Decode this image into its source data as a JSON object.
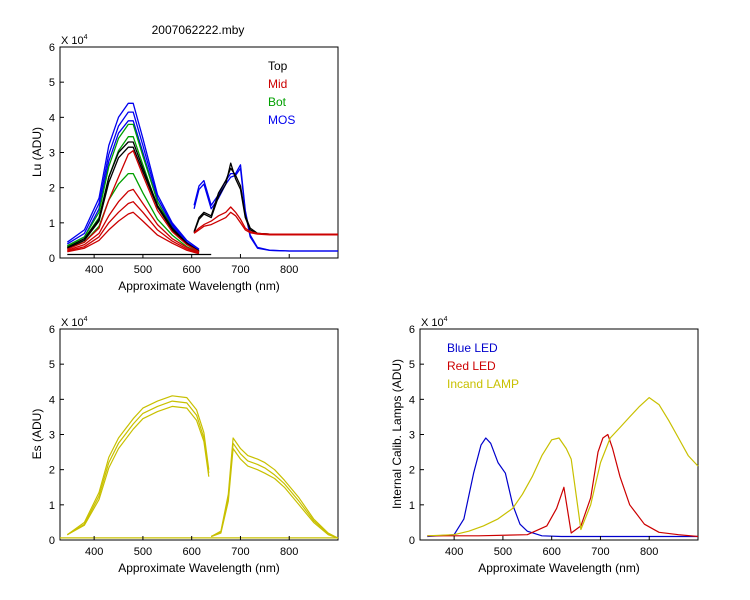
{
  "colors": {
    "top": "#000000",
    "mid": "#cc0000",
    "bot": "#00a000",
    "mos": "#0000ee",
    "es": "#c8c000",
    "blue_led": "#0000cc",
    "red_led": "#cc0000",
    "incand": "#c8c000"
  },
  "chart_data": [
    {
      "id": "lu",
      "type": "line",
      "title": "2007062222.mby",
      "xlabel": "Approximate Wavelength (nm)",
      "ylabel": "Lu (ADU)",
      "y_multiplier": "X 10",
      "y_exponent": "4",
      "xlim": [
        330,
        900
      ],
      "ylim": [
        0,
        6
      ],
      "xticks": [
        400,
        500,
        600,
        700,
        800
      ],
      "yticks": [
        0,
        1,
        2,
        3,
        4,
        5,
        6
      ],
      "legend_position": "top-right",
      "legend": [
        {
          "name": "Top",
          "color_key": "top"
        },
        {
          "name": "Mid",
          "color_key": "mid"
        },
        {
          "name": "Bot",
          "color_key": "bot"
        },
        {
          "name": "MOS",
          "color_key": "mos"
        }
      ],
      "series": [
        {
          "group": "mos",
          "x": [
            345,
            380,
            410,
            430,
            450,
            470,
            480,
            500,
            530,
            560,
            590,
            615
          ],
          "y": [
            0.45,
            0.8,
            1.7,
            3.2,
            4.0,
            4.4,
            4.4,
            3.4,
            1.8,
            1.0,
            0.5,
            0.25
          ]
        },
        {
          "group": "mos",
          "x": [
            345,
            380,
            410,
            430,
            450,
            470,
            480,
            500,
            530,
            560,
            590,
            615
          ],
          "y": [
            0.4,
            0.7,
            1.55,
            2.95,
            3.75,
            4.15,
            4.15,
            3.2,
            1.7,
            0.95,
            0.45,
            0.22
          ]
        },
        {
          "group": "mos",
          "x": [
            345,
            380,
            410,
            430,
            450,
            470,
            480,
            500,
            530,
            560,
            590,
            615
          ],
          "y": [
            0.35,
            0.6,
            1.4,
            2.75,
            3.55,
            3.9,
            3.9,
            3.0,
            1.6,
            0.9,
            0.4,
            0.2
          ]
        },
        {
          "group": "mos",
          "x": [
            605,
            615,
            625,
            640,
            655,
            670,
            680,
            690,
            700,
            710,
            720,
            735,
            760,
            800,
            850,
            900
          ],
          "y": [
            1.4,
            1.95,
            2.1,
            1.4,
            1.7,
            2.1,
            2.3,
            2.35,
            2.55,
            1.3,
            0.6,
            0.28,
            0.22,
            0.2,
            0.2,
            0.2
          ]
        },
        {
          "group": "mos",
          "x": [
            605,
            615,
            625,
            640,
            655,
            670,
            680,
            690,
            700,
            710,
            720,
            735,
            760,
            800,
            850,
            900
          ],
          "y": [
            1.5,
            2.05,
            2.2,
            1.5,
            1.8,
            2.2,
            2.4,
            2.4,
            2.65,
            1.35,
            0.65,
            0.3,
            0.22,
            0.2,
            0.2,
            0.2
          ]
        },
        {
          "group": "bot",
          "x": [
            345,
            380,
            410,
            430,
            450,
            470,
            480,
            500,
            530,
            560,
            590,
            615
          ],
          "y": [
            0.35,
            0.6,
            1.3,
            2.6,
            3.4,
            3.8,
            3.8,
            2.9,
            1.6,
            0.85,
            0.4,
            0.2
          ]
        },
        {
          "group": "bot",
          "x": [
            345,
            380,
            410,
            430,
            450,
            470,
            480,
            500,
            530,
            560,
            590,
            615
          ],
          "y": [
            0.32,
            0.55,
            1.15,
            2.3,
            3.05,
            3.45,
            3.45,
            2.65,
            1.45,
            0.8,
            0.38,
            0.18
          ]
        },
        {
          "group": "bot",
          "x": [
            345,
            380,
            410,
            430,
            450,
            470,
            480,
            500,
            530,
            560,
            590,
            615
          ],
          "y": [
            0.28,
            0.45,
            0.9,
            1.65,
            2.1,
            2.4,
            2.4,
            1.85,
            1.1,
            0.65,
            0.32,
            0.16
          ]
        },
        {
          "group": "top",
          "x": [
            345,
            380,
            410,
            430,
            450,
            470,
            480,
            500,
            530,
            560,
            590,
            615
          ],
          "y": [
            0.3,
            0.55,
            1.1,
            2.3,
            3.0,
            3.3,
            3.3,
            2.55,
            1.5,
            0.85,
            0.42,
            0.2
          ]
        },
        {
          "group": "top",
          "x": [
            345,
            380,
            410,
            430,
            450,
            470,
            480,
            500,
            530,
            560,
            590,
            615
          ],
          "y": [
            0.28,
            0.5,
            1.05,
            2.15,
            2.85,
            3.15,
            3.15,
            2.45,
            1.45,
            0.8,
            0.4,
            0.18
          ]
        },
        {
          "group": "top",
          "x": [
            605,
            615,
            625,
            640,
            655,
            670,
            680,
            690,
            700,
            710,
            720,
            735,
            760,
            800,
            850,
            900
          ],
          "y": [
            0.75,
            1.15,
            1.3,
            1.2,
            1.85,
            2.2,
            2.55,
            2.35,
            2.05,
            1.2,
            0.85,
            0.7,
            0.68,
            0.68,
            0.68,
            0.68
          ]
        },
        {
          "group": "top",
          "x": [
            605,
            615,
            625,
            640,
            655,
            670,
            680,
            690,
            700,
            710,
            720,
            735,
            760,
            800,
            850,
            900
          ],
          "y": [
            0.72,
            1.1,
            1.25,
            1.15,
            1.75,
            2.1,
            2.7,
            2.25,
            1.95,
            1.15,
            0.8,
            0.7,
            0.68,
            0.68,
            0.68,
            0.68
          ]
        },
        {
          "group": "mid",
          "x": [
            345,
            380,
            410,
            430,
            450,
            470,
            480,
            500,
            530,
            560,
            590,
            615
          ],
          "y": [
            0.25,
            0.45,
            0.85,
            1.65,
            2.3,
            2.95,
            3.05,
            2.35,
            1.35,
            0.75,
            0.38,
            0.18
          ]
        },
        {
          "group": "mid",
          "x": [
            345,
            380,
            410,
            430,
            450,
            470,
            480,
            500,
            530,
            560,
            590,
            615
          ],
          "y": [
            0.22,
            0.38,
            0.7,
            1.2,
            1.6,
            1.9,
            1.95,
            1.55,
            0.95,
            0.55,
            0.3,
            0.15
          ]
        },
        {
          "group": "mid",
          "x": [
            345,
            380,
            410,
            430,
            450,
            470,
            480,
            500,
            530,
            560,
            590,
            615
          ],
          "y": [
            0.2,
            0.32,
            0.6,
            1.0,
            1.3,
            1.55,
            1.6,
            1.3,
            0.8,
            0.48,
            0.26,
            0.14
          ]
        },
        {
          "group": "mid",
          "x": [
            345,
            380,
            410,
            430,
            450,
            470,
            480,
            500,
            530,
            560,
            590,
            615
          ],
          "y": [
            0.18,
            0.28,
            0.5,
            0.8,
            1.05,
            1.25,
            1.3,
            1.05,
            0.65,
            0.42,
            0.22,
            0.12
          ]
        },
        {
          "group": "mid",
          "x": [
            605,
            615,
            625,
            640,
            655,
            670,
            680,
            690,
            700,
            710,
            720,
            735,
            760,
            800,
            850,
            900
          ],
          "y": [
            0.72,
            0.85,
            0.95,
            1.05,
            1.2,
            1.3,
            1.45,
            1.3,
            1.1,
            0.85,
            0.75,
            0.7,
            0.68,
            0.68,
            0.68,
            0.68
          ]
        },
        {
          "group": "mid",
          "x": [
            605,
            615,
            625,
            640,
            655,
            670,
            680,
            690,
            700,
            710,
            720,
            735,
            760,
            800,
            850,
            900
          ],
          "y": [
            0.7,
            0.8,
            0.9,
            0.95,
            1.05,
            1.15,
            1.3,
            1.2,
            1.0,
            0.8,
            0.72,
            0.68,
            0.66,
            0.66,
            0.66,
            0.66
          ]
        },
        {
          "group": "top",
          "x": [
            345,
            640
          ],
          "y": [
            0.1,
            0.1
          ]
        }
      ]
    },
    {
      "id": "es",
      "type": "line",
      "title": "",
      "xlabel": "Approximate Wavelength (nm)",
      "ylabel": "Es (ADU)",
      "y_multiplier": "X 10",
      "y_exponent": "4",
      "xlim": [
        330,
        900
      ],
      "ylim": [
        0,
        6
      ],
      "xticks": [
        400,
        500,
        600,
        700,
        800
      ],
      "yticks": [
        0,
        1,
        2,
        3,
        4,
        5,
        6
      ],
      "series": [
        {
          "group": "es",
          "x": [
            345,
            380,
            410,
            430,
            450,
            480,
            500,
            530,
            560,
            590,
            610,
            625,
            635
          ],
          "y": [
            0.15,
            0.5,
            1.35,
            2.35,
            2.9,
            3.45,
            3.75,
            3.95,
            4.1,
            4.05,
            3.7,
            3.05,
            2.0
          ]
        },
        {
          "group": "es",
          "x": [
            345,
            380,
            410,
            430,
            450,
            480,
            500,
            530,
            560,
            590,
            610,
            625,
            635
          ],
          "y": [
            0.15,
            0.45,
            1.25,
            2.2,
            2.75,
            3.3,
            3.6,
            3.8,
            3.95,
            3.9,
            3.55,
            2.9,
            1.9
          ]
        },
        {
          "group": "es",
          "x": [
            345,
            380,
            410,
            430,
            450,
            480,
            500,
            530,
            560,
            590,
            610,
            625,
            635
          ],
          "y": [
            0.15,
            0.42,
            1.15,
            2.05,
            2.6,
            3.15,
            3.45,
            3.65,
            3.8,
            3.75,
            3.4,
            2.8,
            1.8
          ]
        },
        {
          "group": "es",
          "x": [
            640,
            660,
            675,
            685,
            700,
            715,
            735,
            750,
            770,
            790,
            820,
            850,
            880,
            900
          ],
          "y": [
            0.1,
            0.25,
            1.3,
            2.9,
            2.6,
            2.4,
            2.3,
            2.2,
            2.0,
            1.7,
            1.2,
            0.6,
            0.2,
            0.05
          ]
        },
        {
          "group": "es",
          "x": [
            640,
            660,
            675,
            685,
            700,
            715,
            735,
            750,
            770,
            790,
            820,
            850,
            880,
            900
          ],
          "y": [
            0.1,
            0.22,
            1.2,
            2.75,
            2.45,
            2.25,
            2.15,
            2.05,
            1.85,
            1.6,
            1.1,
            0.55,
            0.18,
            0.05
          ]
        },
        {
          "group": "es",
          "x": [
            640,
            660,
            675,
            685,
            700,
            715,
            735,
            750,
            770,
            790,
            820,
            850,
            880,
            900
          ],
          "y": [
            0.1,
            0.2,
            1.1,
            2.6,
            2.3,
            2.1,
            2.0,
            1.9,
            1.75,
            1.5,
            1.0,
            0.5,
            0.15,
            0.05
          ]
        },
        {
          "group": "es",
          "x": [
            330,
            900
          ],
          "y": [
            0.06,
            0.06
          ]
        }
      ]
    },
    {
      "id": "lamps",
      "type": "line",
      "title": "",
      "xlabel": "Approximate Wavelength (nm)",
      "ylabel": "Internal Calib. Lamps (ADU)",
      "y_multiplier": "X 10",
      "y_exponent": "4",
      "xlim": [
        330,
        900
      ],
      "ylim": [
        0,
        6
      ],
      "xticks": [
        400,
        500,
        600,
        700,
        800
      ],
      "yticks": [
        0,
        1,
        2,
        3,
        4,
        5,
        6
      ],
      "legend_position": "top-left",
      "legend": [
        {
          "name": "Blue LED",
          "color_key": "blue_led"
        },
        {
          "name": "Red LED",
          "color_key": "red_led"
        },
        {
          "name": "Incand LAMP",
          "color_key": "incand"
        }
      ],
      "series": [
        {
          "group": "blue_led",
          "x": [
            345,
            400,
            420,
            440,
            455,
            465,
            475,
            490,
            505,
            520,
            535,
            550,
            580,
            620,
            700,
            800,
            900
          ],
          "y": [
            0.1,
            0.15,
            0.6,
            1.9,
            2.7,
            2.9,
            2.75,
            2.2,
            1.9,
            1.0,
            0.45,
            0.25,
            0.12,
            0.1,
            0.1,
            0.1,
            0.1
          ]
        },
        {
          "group": "red_led",
          "x": [
            345,
            450,
            550,
            590,
            610,
            625,
            640,
            660,
            680,
            695,
            705,
            715,
            725,
            740,
            760,
            790,
            820,
            860,
            900
          ],
          "y": [
            0.12,
            0.12,
            0.15,
            0.4,
            0.9,
            1.5,
            0.2,
            0.4,
            1.2,
            2.5,
            2.9,
            3.0,
            2.6,
            1.8,
            1.0,
            0.45,
            0.22,
            0.15,
            0.1
          ]
        },
        {
          "group": "incand",
          "x": [
            345,
            400,
            430,
            460,
            490,
            520,
            540,
            560,
            580,
            600,
            615,
            630,
            640,
            660,
            680,
            700,
            720,
            740,
            760,
            780,
            800,
            820,
            840,
            860,
            880,
            900
          ],
          "y": [
            0.12,
            0.15,
            0.25,
            0.4,
            0.6,
            0.9,
            1.3,
            1.8,
            2.4,
            2.85,
            2.9,
            2.6,
            2.3,
            0.3,
            1.0,
            2.2,
            2.9,
            3.2,
            3.5,
            3.8,
            4.05,
            3.85,
            3.4,
            2.9,
            2.4,
            2.1
          ]
        }
      ]
    }
  ]
}
